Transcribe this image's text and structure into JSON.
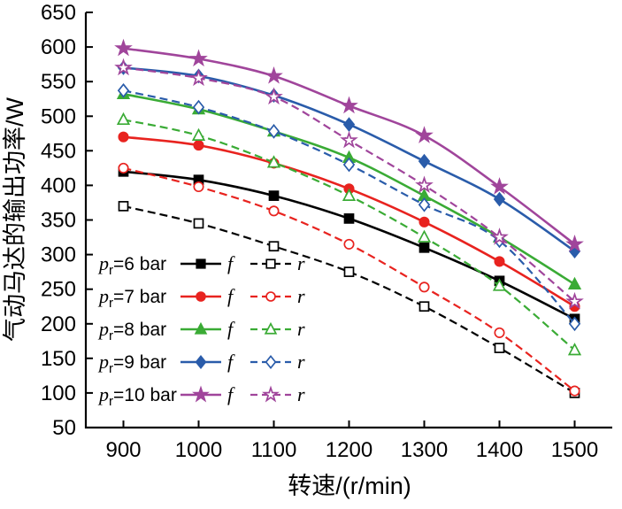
{
  "figure": {
    "background": "#ffffff"
  },
  "chart_data": {
    "type": "line",
    "title": "",
    "xlabel": "转速/(r/min)",
    "ylabel": "气动马达的输出功率/W",
    "x": [
      900,
      1000,
      1100,
      1200,
      1300,
      1400,
      1500
    ],
    "xlim": [
      850,
      1550
    ],
    "ylim": [
      50,
      650
    ],
    "xticks": [
      900,
      1000,
      1100,
      1200,
      1300,
      1400,
      1500
    ],
    "yticks": [
      50,
      100,
      150,
      200,
      250,
      300,
      350,
      400,
      450,
      500,
      550,
      600,
      650
    ],
    "grid": false,
    "legend_position": "lower-left",
    "series": [
      {
        "name": "pr=6 bar f",
        "variant": "f",
        "line": "solid",
        "marker": "square",
        "marker_fill": "filled",
        "color": "#000000",
        "values": [
          420,
          408,
          385,
          352,
          310,
          262,
          207
        ],
        "legend": {
          "italic": "p",
          "sub": "r",
          "rest": "=6 bar"
        }
      },
      {
        "name": "pr=6 bar r",
        "variant": "r",
        "line": "dashed",
        "marker": "square",
        "marker_fill": "open",
        "color": "#000000",
        "values": [
          370,
          345,
          312,
          275,
          225,
          165,
          100
        ]
      },
      {
        "name": "pr=7 bar f",
        "variant": "f",
        "line": "solid",
        "marker": "circle",
        "marker_fill": "filled",
        "color": "#e8231f",
        "values": [
          470,
          458,
          432,
          395,
          347,
          290,
          225
        ],
        "legend": {
          "italic": "p",
          "sub": "r",
          "rest": "=7 bar"
        }
      },
      {
        "name": "pr=7 bar r",
        "variant": "r",
        "line": "dashed",
        "marker": "circle",
        "marker_fill": "open",
        "color": "#e8231f",
        "values": [
          425,
          398,
          363,
          315,
          253,
          187,
          103
        ]
      },
      {
        "name": "pr=8 bar f",
        "variant": "f",
        "line": "solid",
        "marker": "triangle",
        "marker_fill": "filled",
        "color": "#3aab35",
        "values": [
          532,
          510,
          478,
          440,
          385,
          325,
          257
        ],
        "legend": {
          "italic": "p",
          "sub": "r",
          "rest": "=8 bar"
        }
      },
      {
        "name": "pr=8 bar r",
        "variant": "r",
        "line": "dashed",
        "marker": "triangle",
        "marker_fill": "open",
        "color": "#3aab35",
        "values": [
          495,
          472,
          433,
          385,
          325,
          255,
          162
        ]
      },
      {
        "name": "pr=9 bar f",
        "variant": "f",
        "line": "solid",
        "marker": "diamond",
        "marker_fill": "filled",
        "color": "#2a5caa",
        "values": [
          570,
          558,
          530,
          488,
          435,
          380,
          305
        ],
        "legend": {
          "italic": "p",
          "sub": "r",
          "rest": "=9 bar"
        }
      },
      {
        "name": "pr=9 bar r",
        "variant": "r",
        "line": "dashed",
        "marker": "diamond",
        "marker_fill": "open",
        "color": "#2a5caa",
        "values": [
          537,
          513,
          478,
          430,
          372,
          320,
          200
        ]
      },
      {
        "name": "pr=10 bar f",
        "variant": "f",
        "line": "solid",
        "marker": "star",
        "marker_fill": "filled",
        "color": "#a0459b",
        "values": [
          598,
          583,
          558,
          515,
          472,
          398,
          315
        ],
        "legend": {
          "italic": "p",
          "sub": "r",
          "rest": "=10 bar"
        }
      },
      {
        "name": "pr=10 bar r",
        "variant": "r",
        "line": "dashed",
        "marker": "star",
        "marker_fill": "open",
        "color": "#a0459b",
        "values": [
          570,
          555,
          528,
          465,
          400,
          325,
          232
        ]
      }
    ],
    "legend_f_label": "f",
    "legend_r_label": "r"
  }
}
